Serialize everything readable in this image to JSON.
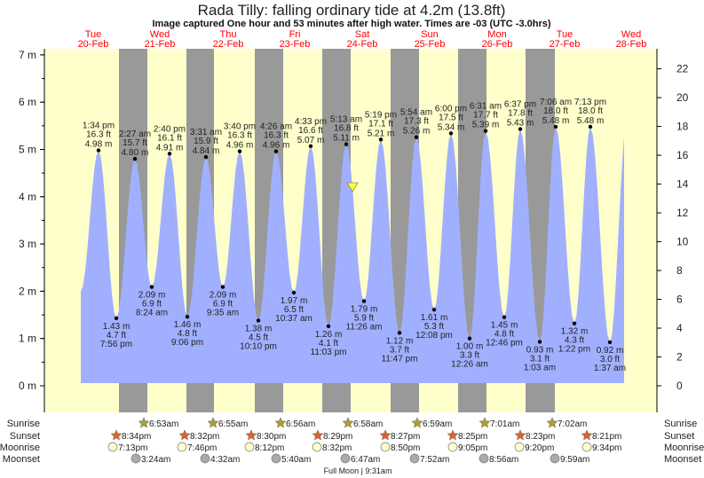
{
  "title": "Rada Tilly: falling  ordinary tide at 4.2m (13.8ft)",
  "subtitle": "Image captured One hour and 53 minutes after high water. Times are -03 (UTC -3.0hrs)",
  "colors": {
    "day": "#ffffcc",
    "night": "#999999",
    "water": "#a0b0ff",
    "day_label": "#ff0000",
    "now_marker": "#ffff33"
  },
  "days": [
    {
      "dow": "Tue",
      "date": "20-Feb"
    },
    {
      "dow": "Wed",
      "date": "21-Feb"
    },
    {
      "dow": "Thu",
      "date": "22-Feb"
    },
    {
      "dow": "Fri",
      "date": "23-Feb"
    },
    {
      "dow": "Sat",
      "date": "24-Feb"
    },
    {
      "dow": "Sun",
      "date": "25-Feb"
    },
    {
      "dow": "Mon",
      "date": "26-Feb"
    },
    {
      "dow": "Tue",
      "date": "27-Feb"
    },
    {
      "dow": "Wed",
      "date": "28-Feb"
    }
  ],
  "chart_data": {
    "type": "area",
    "left_axis": {
      "ticks": [
        "0 m",
        "1 m",
        "2 m",
        "3 m",
        "4 m",
        "5 m",
        "6 m",
        "7 m"
      ],
      "range": [
        -0.5,
        7.1
      ]
    },
    "right_axis": {
      "ticks": [
        "0 ft",
        "2 ft",
        "4 ft",
        "6 ft",
        "8 ft",
        "10 ft",
        "12 ft",
        "14 ft",
        "16 ft",
        "18 ft",
        "20 ft",
        "22 ft"
      ]
    },
    "current_level_m": 4.2,
    "extremes": [
      {
        "type": "high",
        "time": "1:34 pm",
        "ft": "16.3 ft",
        "m": 4.98
      },
      {
        "type": "low",
        "time": "7:56 pm",
        "ft": "4.7 ft",
        "m": 1.43
      },
      {
        "type": "high",
        "time": "2:27 am",
        "ft": "15.7 ft",
        "m": 4.8
      },
      {
        "type": "low",
        "time": "8:24 am",
        "ft": "6.9 ft",
        "m": 2.09
      },
      {
        "type": "high",
        "time": "2:40 pm",
        "ft": "16.1 ft",
        "m": 4.91
      },
      {
        "type": "low",
        "time": "9:06 pm",
        "ft": "4.8 ft",
        "m": 1.46
      },
      {
        "type": "high",
        "time": "3:31 am",
        "ft": "15.9 ft",
        "m": 4.84
      },
      {
        "type": "low",
        "time": "9:35 am",
        "ft": "6.9 ft",
        "m": 2.09
      },
      {
        "type": "high",
        "time": "3:40 pm",
        "ft": "16.3 ft",
        "m": 4.96
      },
      {
        "type": "low",
        "time": "10:10 pm",
        "ft": "4.5 ft",
        "m": 1.38
      },
      {
        "type": "high",
        "time": "4:26 am",
        "ft": "16.3 ft",
        "m": 4.96
      },
      {
        "type": "low",
        "time": "10:37 am",
        "ft": "6.5 ft",
        "m": 1.97
      },
      {
        "type": "high",
        "time": "4:33 pm",
        "ft": "16.6 ft",
        "m": 5.07
      },
      {
        "type": "low",
        "time": "11:03 pm",
        "ft": "4.1 ft",
        "m": 1.26
      },
      {
        "type": "high",
        "time": "5:13 am",
        "ft": "16.8 ft",
        "m": 5.11
      },
      {
        "type": "low",
        "time": "11:26 am",
        "ft": "5.9 ft",
        "m": 1.79
      },
      {
        "type": "high",
        "time": "5:19 pm",
        "ft": "17.1 ft",
        "m": 5.21
      },
      {
        "type": "low",
        "time": "11:47 pm",
        "ft": "3.7 ft",
        "m": 1.12
      },
      {
        "type": "high",
        "time": "5:54 am",
        "ft": "17.3 ft",
        "m": 5.26
      },
      {
        "type": "low",
        "time": "12:08 pm",
        "ft": "5.3 ft",
        "m": 1.61
      },
      {
        "type": "high",
        "time": "6:00 pm",
        "ft": "17.5 ft",
        "m": 5.34
      },
      {
        "type": "low",
        "time": "12:26 am",
        "ft": "3.3 ft",
        "m": 1.0
      },
      {
        "type": "high",
        "time": "6:31 am",
        "ft": "17.7 ft",
        "m": 5.39
      },
      {
        "type": "low",
        "time": "12:46 pm",
        "ft": "4.8 ft",
        "m": 1.45
      },
      {
        "type": "high",
        "time": "6:37 pm",
        "ft": "17.8 ft",
        "m": 5.43
      },
      {
        "type": "low",
        "time": "1:03 am",
        "ft": "3.1 ft",
        "m": 0.93
      },
      {
        "type": "high",
        "time": "7:06 am",
        "ft": "18.0 ft",
        "m": 5.48
      },
      {
        "type": "low",
        "time": "1:22 pm",
        "ft": "4.3 ft",
        "m": 1.32
      },
      {
        "type": "high",
        "time": "7:13 pm",
        "ft": "18.0 ft",
        "m": 5.48
      },
      {
        "type": "low",
        "time": "1:37 am",
        "ft": "3.0 ft",
        "m": 0.92
      }
    ]
  },
  "almanac": {
    "labels": {
      "sunrise": "Sunrise",
      "sunset": "Sunset",
      "moonrise": "Moonrise",
      "moonset": "Moonset"
    },
    "sunrise": [
      "6:53am",
      "6:55am",
      "6:56am",
      "6:58am",
      "6:59am",
      "7:01am",
      "7:02am"
    ],
    "sunset": [
      "8:34pm",
      "8:32pm",
      "8:30pm",
      "8:29pm",
      "8:27pm",
      "8:25pm",
      "8:23pm",
      "8:21pm"
    ],
    "moonrise": [
      "7:13pm",
      "7:46pm",
      "8:12pm",
      "8:32pm",
      "8:50pm",
      "9:05pm",
      "9:20pm",
      "9:34pm"
    ],
    "moonset": [
      "3:24am",
      "4:32am",
      "5:40am",
      "6:47am",
      "7:52am",
      "8:56am",
      "9:59am"
    ],
    "moon_phase": "Full Moon | 9:31am"
  }
}
